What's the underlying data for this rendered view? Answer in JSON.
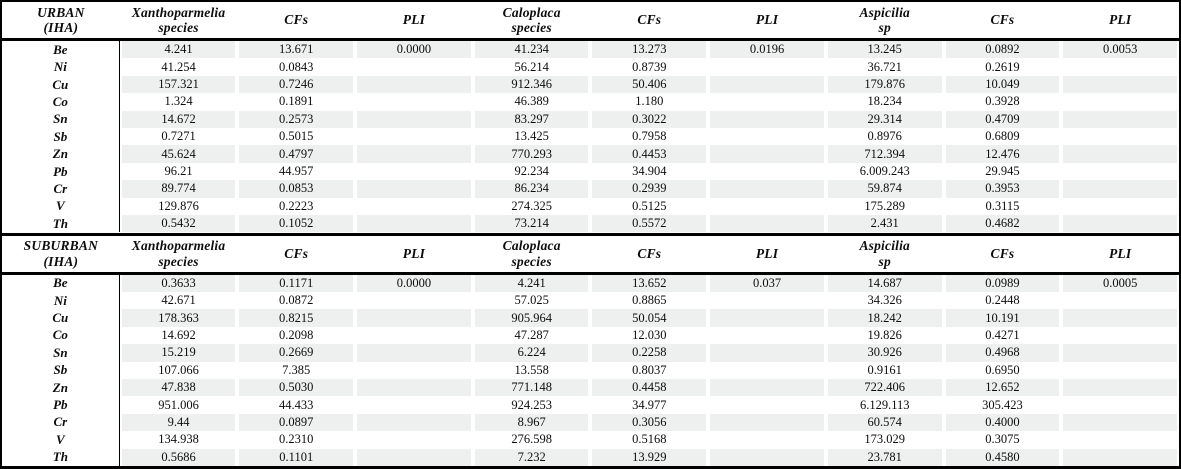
{
  "colors": {
    "stripe": "#edf0ee",
    "border": "#000000",
    "text": "#0d0d0d"
  },
  "sections": [
    {
      "id": "urban",
      "title": [
        "URBAN",
        "(IHA)"
      ],
      "headers": [
        [
          "Xanthoparmelia",
          "species"
        ],
        [
          "CFs"
        ],
        [
          "PLI"
        ],
        [
          "Caloplaca",
          "species"
        ],
        [
          "CFs"
        ],
        [
          "PLI"
        ],
        [
          "Aspicilia",
          "sp"
        ],
        [
          "CFs"
        ],
        [
          "PLI"
        ]
      ],
      "rows": [
        [
          "Be",
          "4.241",
          "13.671",
          "0.0000",
          "41.234",
          "13.273",
          "0.0196",
          "13.245",
          "0.0892",
          "0.0053"
        ],
        [
          "Ni",
          "41.254",
          "0.0843",
          "",
          "56.214",
          "0.8739",
          "",
          "36.721",
          "0.2619",
          ""
        ],
        [
          "Cu",
          "157.321",
          "0.7246",
          "",
          "912.346",
          "50.406",
          "",
          "179.876",
          "10.049",
          ""
        ],
        [
          "Co",
          "1.324",
          "0.1891",
          "",
          "46.389",
          "1.180",
          "",
          "18.234",
          "0.3928",
          ""
        ],
        [
          "Sn",
          "14.672",
          "0.2573",
          "",
          "83.297",
          "0.3022",
          "",
          "29.314",
          "0.4709",
          ""
        ],
        [
          "Sb",
          "0.7271",
          "0.5015",
          "",
          "13.425",
          "0.7958",
          "",
          "0.8976",
          "0.6809",
          ""
        ],
        [
          "Zn",
          "45.624",
          "0.4797",
          "",
          "770.293",
          "0.4453",
          "",
          "712.394",
          "12.476",
          ""
        ],
        [
          "Pb",
          "96.21",
          "44.957",
          "",
          "92.234",
          "34.904",
          "",
          "6.009.243",
          "29.945",
          ""
        ],
        [
          "Cr",
          "89.774",
          "0.0853",
          "",
          "86.234",
          "0.2939",
          "",
          "59.874",
          "0.3953",
          ""
        ],
        [
          "V",
          "129.876",
          "0.2223",
          "",
          "274.325",
          "0.5125",
          "",
          "175.289",
          "0.3115",
          ""
        ],
        [
          "Th",
          "0.5432",
          "0.1052",
          "",
          "73.214",
          "0.5572",
          "",
          "2.431",
          "0.4682",
          ""
        ]
      ]
    },
    {
      "id": "suburban",
      "title": [
        "SUBURBAN",
        "(IHA)"
      ],
      "headers": [
        [
          "Xanthoparmelia",
          "species"
        ],
        [
          "CFs"
        ],
        [
          "PLI"
        ],
        [
          "Caloplaca",
          "species"
        ],
        [
          "CFs"
        ],
        [
          "PLI"
        ],
        [
          "Aspicilia",
          "sp"
        ],
        [
          "CFs"
        ],
        [
          "PLI"
        ]
      ],
      "rows": [
        [
          "Be",
          "0.3633",
          "0.1171",
          "0.0000",
          "4.241",
          "13.652",
          "0.037",
          "14.687",
          "0.0989",
          "0.0005"
        ],
        [
          "Ni",
          "42.671",
          "0.0872",
          "",
          "57.025",
          "0.8865",
          "",
          "34.326",
          "0.2448",
          ""
        ],
        [
          "Cu",
          "178.363",
          "0.8215",
          "",
          "905.964",
          "50.054",
          "",
          "18.242",
          "10.191",
          ""
        ],
        [
          "Co",
          "14.692",
          "0.2098",
          "",
          "47.287",
          "12.030",
          "",
          "19.826",
          "0.4271",
          ""
        ],
        [
          "Sn",
          "15.219",
          "0.2669",
          "",
          "6.224",
          "0.2258",
          "",
          "30.926",
          "0.4968",
          ""
        ],
        [
          "Sb",
          "107.066",
          "7.385",
          "",
          "13.558",
          "0.8037",
          "",
          "0.9161",
          "0.6950",
          ""
        ],
        [
          "Zn",
          "47.838",
          "0.5030",
          "",
          "771.148",
          "0.4458",
          "",
          "722.406",
          "12.652",
          ""
        ],
        [
          "Pb",
          "951.006",
          "44.433",
          "",
          "924.253",
          "34.977",
          "",
          "6.129.113",
          "305.423",
          ""
        ],
        [
          "Cr",
          "9.44",
          "0.0897",
          "",
          "8.967",
          "0.3056",
          "",
          "60.574",
          "0.4000",
          ""
        ],
        [
          "V",
          "134.938",
          "0.2310",
          "",
          "276.598",
          "0.5168",
          "",
          "173.029",
          "0.3075",
          ""
        ],
        [
          "Th",
          "0.5686",
          "0.1101",
          "",
          "7.232",
          "13.929",
          "",
          "23.781",
          "0.4580",
          ""
        ]
      ]
    }
  ]
}
